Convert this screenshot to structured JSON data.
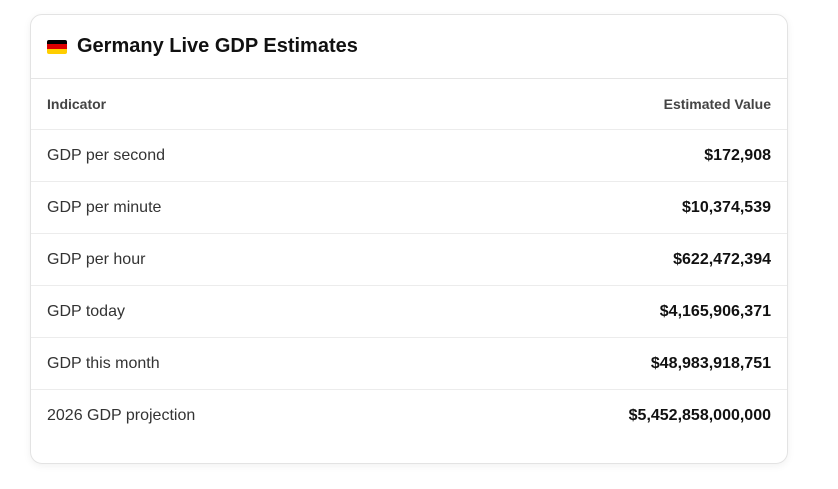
{
  "header": {
    "title": "Germany Live GDP Estimates"
  },
  "table": {
    "columns": [
      "Indicator",
      "Estimated Value"
    ],
    "rows": [
      [
        "GDP per second",
        "$172,908"
      ],
      [
        "GDP per minute",
        "$10,374,539"
      ],
      [
        "GDP per hour",
        "$622,472,394"
      ],
      [
        "GDP today",
        "$4,165,906,371"
      ],
      [
        "GDP this month",
        "$48,983,918,751"
      ],
      [
        "2026 GDP projection",
        "$5,452,858,000,000"
      ]
    ]
  }
}
